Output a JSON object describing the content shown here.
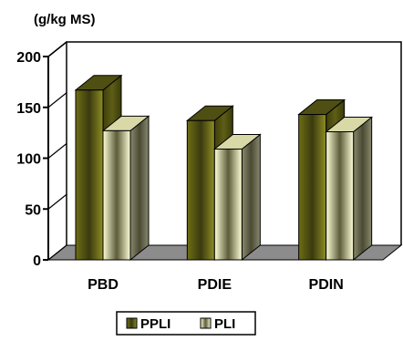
{
  "chart_data": {
    "type": "bar",
    "title": "",
    "ylabel": "(g/kg MS)",
    "xlabel": "",
    "categories": [
      "PBD",
      "PDIE",
      "PDIN"
    ],
    "series": [
      {
        "name": "PPLI",
        "values": [
          167,
          137,
          143
        ],
        "color": "#8B8B1E"
      },
      {
        "name": "PLI",
        "values": [
          127,
          109,
          126
        ],
        "color": "#FFFFC8"
      }
    ],
    "ylim": [
      0,
      200
    ],
    "yticks": [
      0,
      50,
      100,
      150,
      200
    ],
    "grid": false,
    "legend": "bottom-center"
  }
}
